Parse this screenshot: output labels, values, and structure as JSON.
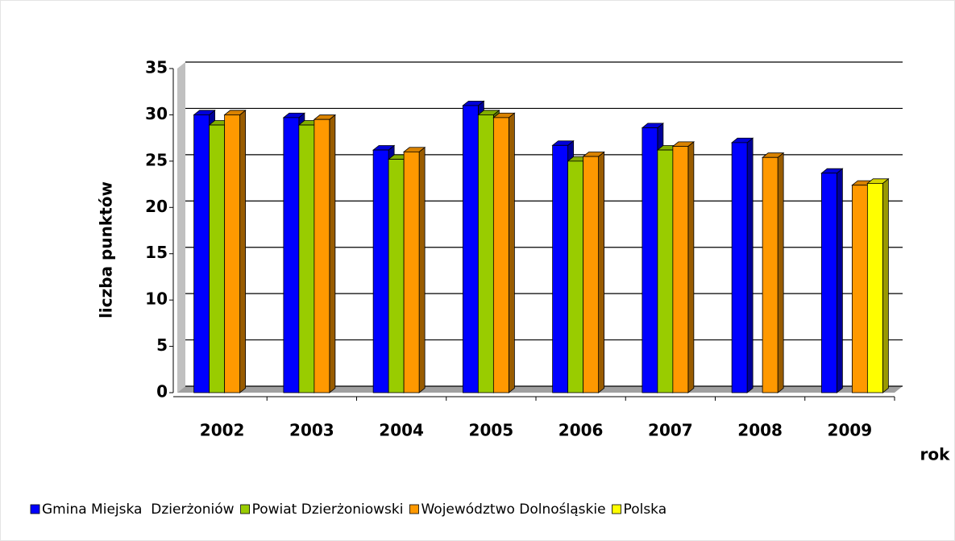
{
  "chart_data": {
    "type": "bar3d",
    "y_label": "liczba punktów",
    "x_label": "rok",
    "categories": [
      "2002",
      "2003",
      "2004",
      "2005",
      "2006",
      "2007",
      "2008",
      "2009"
    ],
    "series": [
      {
        "name": "Gmina Miejska  Dzierżoniów",
        "color": "#0000ff",
        "values": [
          30,
          29.7,
          26.2,
          31,
          26.7,
          28.6,
          27,
          23.7
        ]
      },
      {
        "name": "Powiat Dzierżoniowski",
        "color": "#99cc00",
        "values": [
          28.9,
          28.9,
          25.2,
          30,
          25,
          26.2,
          null,
          null
        ]
      },
      {
        "name": "Województwo Dolnośląskie",
        "color": "#ff9900",
        "values": [
          30,
          29.5,
          26,
          29.7,
          25.5,
          26.6,
          25.4,
          22.4
        ]
      },
      {
        "name": "Polska",
        "color": "#ffff00",
        "values": [
          null,
          null,
          null,
          null,
          null,
          null,
          null,
          22.6
        ]
      }
    ],
    "ylim": [
      0,
      35
    ],
    "yticks": [
      0,
      5,
      10,
      15,
      20,
      25,
      30,
      35
    ],
    "grid": true,
    "legend": "bottom"
  }
}
